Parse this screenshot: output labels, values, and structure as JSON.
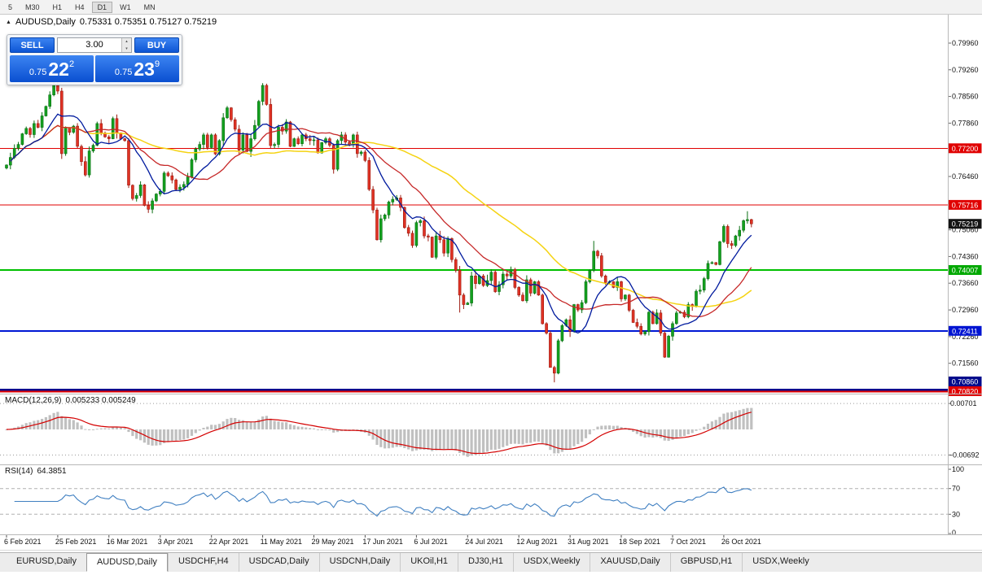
{
  "toolbar": {
    "timeframes": [
      "5",
      "M30",
      "H1",
      "H4",
      "D1",
      "W1",
      "MN"
    ],
    "active": "D1"
  },
  "title": {
    "symbol_period": "AUDUSD,Daily",
    "ohlc": "0.75331 0.75351 0.75127 0.75219"
  },
  "icons": {
    "one_click_toggle": "▲",
    "volume_up": "▴",
    "volume_down": "▾"
  },
  "one_click": {
    "sell_label": "SELL",
    "buy_label": "BUY",
    "volume": "3.00",
    "sell_price": {
      "base": "0.75",
      "pips": "22",
      "point": "2"
    },
    "buy_price": {
      "base": "0.75",
      "pips": "23",
      "point": "9"
    }
  },
  "macd": {
    "name": "MACD(12,26,9)",
    "values": "0.005233 0.005249"
  },
  "rsi": {
    "name": "RSI(14)",
    "value": "64.3851"
  },
  "tabs": {
    "active_index": 1,
    "items": [
      "EURUSD,Daily",
      "AUDUSD,Daily",
      "USDCHF,H4",
      "USDCAD,Daily",
      "USDCNH,Daily",
      "UKOil,H1",
      "DJ30,H1",
      "USDX,Weekly",
      "XAUUSD,Daily",
      "GBPUSD,H1",
      "USDX,Weekly"
    ]
  },
  "chart_data": {
    "type": "candlestick",
    "symbol": "AUDUSD",
    "timeframe": "Daily",
    "ohlc_display": {
      "open": 0.75331,
      "high": 0.75351,
      "low": 0.75127,
      "close": 0.75219
    },
    "colors": {
      "up": "#13a11e",
      "up_border": "#0b6f14",
      "down": "#e03224",
      "down_border": "#9d1c12",
      "histogram": "#c0c0c0",
      "signal_line": "#d40000",
      "rsi_line": "#3f7fc1",
      "accent_blue": "#0d55d4"
    },
    "closes": [
      0.7676,
      0.7696,
      0.772,
      0.773,
      0.7758,
      0.7772,
      0.7756,
      0.7785,
      0.7775,
      0.7805,
      0.783,
      0.786,
      0.7885,
      0.787,
      0.7706,
      0.7773,
      0.7762,
      0.7778,
      0.7725,
      0.7685,
      0.765,
      0.7713,
      0.7728,
      0.7785,
      0.776,
      0.775,
      0.7745,
      0.7798,
      0.776,
      0.7745,
      0.774,
      0.7623,
      0.7588,
      0.7596,
      0.7624,
      0.757,
      0.756,
      0.7582,
      0.76,
      0.7607,
      0.7655,
      0.7648,
      0.7637,
      0.7612,
      0.7618,
      0.7625,
      0.7645,
      0.769,
      0.7718,
      0.773,
      0.7755,
      0.7722,
      0.7755,
      0.7705,
      0.774,
      0.78,
      0.7826,
      0.7795,
      0.777,
      0.7715,
      0.7755,
      0.7712,
      0.7745,
      0.778,
      0.7843,
      0.7885,
      0.7835,
      0.7727,
      0.773,
      0.7775,
      0.7765,
      0.7789,
      0.7725,
      0.7745,
      0.7732,
      0.7755,
      0.7745,
      0.774,
      0.7742,
      0.7708,
      0.7735,
      0.7745,
      0.7728,
      0.7665,
      0.774,
      0.7755,
      0.7736,
      0.773,
      0.7755,
      0.7706,
      0.771,
      0.7688,
      0.7612,
      0.7558,
      0.748,
      0.7535,
      0.7545,
      0.7579,
      0.7586,
      0.759,
      0.7565,
      0.7512,
      0.7497,
      0.7465,
      0.7525,
      0.753,
      0.749,
      0.7487,
      0.7434,
      0.749,
      0.748,
      0.7445,
      0.7483,
      0.7428,
      0.74,
      0.7335,
      0.731,
      0.7314,
      0.7385,
      0.7365,
      0.7385,
      0.736,
      0.7373,
      0.7395,
      0.7344,
      0.7362,
      0.739,
      0.7385,
      0.7402,
      0.7355,
      0.7335,
      0.732,
      0.7375,
      0.734,
      0.737,
      0.7335,
      0.726,
      0.7235,
      0.7145,
      0.713,
      0.7215,
      0.7255,
      0.727,
      0.724,
      0.731,
      0.7296,
      0.7315,
      0.737,
      0.74,
      0.745,
      0.7438,
      0.7385,
      0.7368,
      0.737,
      0.7355,
      0.737,
      0.7325,
      0.7335,
      0.7295,
      0.7263,
      0.7253,
      0.7233,
      0.7239,
      0.729,
      0.726,
      0.7288,
      0.7235,
      0.7172,
      0.7227,
      0.726,
      0.7288,
      0.729,
      0.7278,
      0.731,
      0.7305,
      0.7345,
      0.7348,
      0.7378,
      0.7418,
      0.742,
      0.7415,
      0.7475,
      0.7515,
      0.747,
      0.7465,
      0.749,
      0.7505,
      0.753,
      0.7533,
      0.75219
    ],
    "wick_overrides": [
      {
        "i": 13,
        "high": 0.7905
      },
      {
        "i": 14,
        "low": 0.7692
      },
      {
        "i": 65,
        "high": 0.7891
      },
      {
        "i": 94,
        "low": 0.7478
      },
      {
        "i": 115,
        "low": 0.7289
      },
      {
        "i": 138,
        "low": 0.715
      },
      {
        "i": 139,
        "low": 0.7106
      },
      {
        "i": 149,
        "high": 0.7477
      },
      {
        "i": 167,
        "low": 0.717
      },
      {
        "i": 188,
        "high": 0.7555
      },
      {
        "i": 189,
        "high": 0.75351,
        "low": 0.75127
      }
    ],
    "moving_averages": [
      {
        "period": 50,
        "color": "#f5d312",
        "width": 1.5
      },
      {
        "period": 21,
        "color": "#c62828",
        "width": 1.3
      },
      {
        "period": 10,
        "color": "#001a9e",
        "width": 1.3
      }
    ],
    "levels": [
      {
        "price": 0.772,
        "color": "#e00000",
        "width": 1
      },
      {
        "price": 0.75716,
        "color": "#e00000",
        "width": 1
      },
      {
        "price": 0.74007,
        "color": "#00c000",
        "width": 2
      },
      {
        "price": 0.72411,
        "color": "#0018d4",
        "width": 2
      },
      {
        "price": 0.7086,
        "color": "#000a8c",
        "width": 3
      },
      {
        "price": 0.7082,
        "color": "#e00000",
        "width": 2
      }
    ],
    "y_axis": {
      "ticks": [
        {
          "label": "0.79960",
          "price": 0.7996
        },
        {
          "label": "0.79260",
          "price": 0.7926
        },
        {
          "label": "0.78560",
          "price": 0.7856
        },
        {
          "label": "0.77860",
          "price": 0.7786
        },
        {
          "label": "0.76460",
          "price": 0.7646
        },
        {
          "label": "0.75060",
          "price": 0.7506
        },
        {
          "label": "0.74360",
          "price": 0.7436
        },
        {
          "label": "0.73660",
          "price": 0.7366
        },
        {
          "label": "0.72960",
          "price": 0.7296
        },
        {
          "label": "0.72260",
          "price": 0.7226
        },
        {
          "label": "0.71560",
          "price": 0.7156
        }
      ],
      "badges": [
        {
          "label": "0.77200",
          "price": 0.772,
          "color": "#e00000"
        },
        {
          "label": "0.75716",
          "price": 0.75716,
          "color": "#e00000"
        },
        {
          "label": "0.75219",
          "price": 0.75219,
          "color": "#141414"
        },
        {
          "label": "0.74007",
          "price": 0.74007,
          "color": "#00a800"
        },
        {
          "label": "0.72411",
          "price": 0.72411,
          "color": "#0014d2"
        },
        {
          "label": "0.70860",
          "price": 0.7086,
          "color": "#000a8c"
        },
        {
          "label": "0.70820",
          "price": 0.7082,
          "color": "#e00000"
        }
      ]
    },
    "macd": {
      "fast": 12,
      "slow": 26,
      "signal": 9,
      "current_macd": 0.005233,
      "current_signal": 0.005249,
      "axis": [
        {
          "label": "0.00701",
          "value": 0.00701
        },
        {
          "label": "-0.00692",
          "value": -0.00692
        }
      ]
    },
    "rsi": {
      "period": 14,
      "current": 64.3851,
      "levels": [
        70,
        30
      ],
      "axis": [
        {
          "label": "100",
          "value": 100
        },
        {
          "label": "70",
          "value": 70
        },
        {
          "label": "30",
          "value": 30
        },
        {
          "label": "0",
          "value": 0
        }
      ]
    },
    "date_labels": [
      "6 Feb 2021",
      "25 Feb 2021",
      "16 Mar 2021",
      "3 Apr 2021",
      "22 Apr 2021",
      "11 May 2021",
      "29 May 2021",
      "17 Jun 2021",
      "6 Jul 2021",
      "24 Jul 2021",
      "12 Aug 2021",
      "31 Aug 2021",
      "18 Sep 2021",
      "7 Oct 2021",
      "26 Oct 2021"
    ],
    "bars_per_label": 13
  }
}
